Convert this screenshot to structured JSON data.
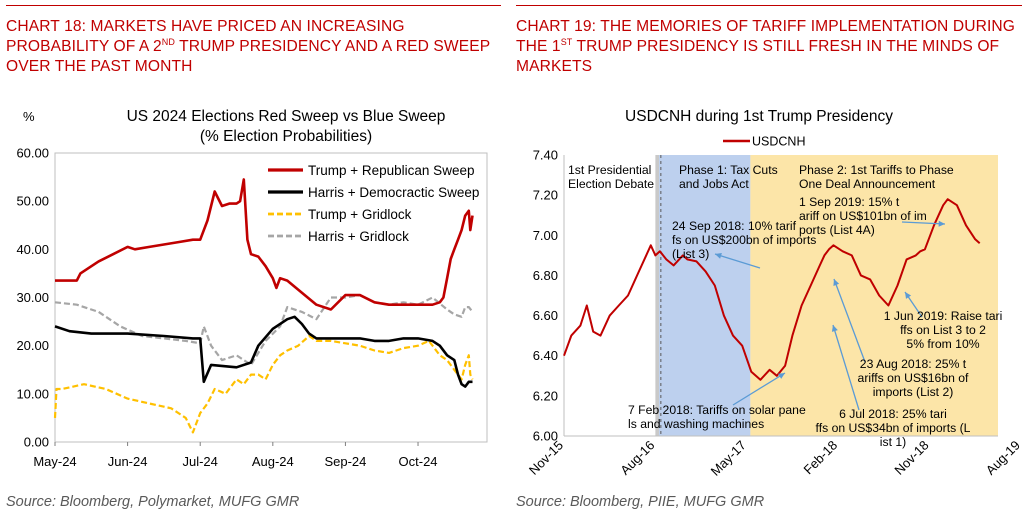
{
  "left_panel": {
    "title_parts": [
      "Chart 18: Markets have priced an increasing probability of a 2",
      "nd",
      " Trump presidency and a red sweep over the past month"
    ],
    "source": "Source: Bloomberg, Polymarket, MUFG GMR"
  },
  "right_panel": {
    "title_parts": [
      "Chart 19: The memories of tariff implementation during the 1",
      "st",
      " Trump presidency is still fresh in the minds of markets"
    ],
    "source": "Source: Bloomberg, PIIE, MUFG GMR"
  },
  "chart_data": [
    {
      "type": "line",
      "title": "US 2024 Elections Red Sweep vs Blue Sweep",
      "subtitle": "(% Election Probabilities)",
      "ylabel": "%",
      "ylim": [
        0,
        60
      ],
      "yticks": [
        "0.00",
        "10.00",
        "20.00",
        "30.00",
        "40.00",
        "50.00",
        "60.00"
      ],
      "xlabels": [
        "May-24",
        "Jun-24",
        "Jul-24",
        "Aug-24",
        "Sep-24",
        "Oct-24"
      ],
      "xlim": [
        0,
        5.95
      ],
      "legend_position": "top-right",
      "series": [
        {
          "name": "Trump + Republican Sweep",
          "color": "#c00000",
          "style": "solid",
          "width": 2.6,
          "x": [
            0,
            0.3,
            0.35,
            0.6,
            0.8,
            1.0,
            1.1,
            1.3,
            1.5,
            1.7,
            1.9,
            2.0,
            2.1,
            2.2,
            2.3,
            2.4,
            2.5,
            2.55,
            2.6,
            2.65,
            2.7,
            2.8,
            2.9,
            3.0,
            3.05,
            3.1,
            3.2,
            3.4,
            3.6,
            3.8,
            4.0,
            4.2,
            4.4,
            4.6,
            4.8,
            5.0,
            5.1,
            5.2,
            5.3,
            5.35,
            5.4,
            5.45,
            5.5,
            5.55,
            5.6,
            5.65,
            5.7,
            5.72,
            5.75
          ],
          "y": [
            33.5,
            33.5,
            35,
            37.5,
            39,
            40.5,
            40,
            40.5,
            41,
            41.5,
            42,
            42,
            46,
            52,
            49,
            49.5,
            49.5,
            50,
            54.5,
            42,
            39,
            38.5,
            36.5,
            34,
            32,
            34,
            33.5,
            31,
            28.5,
            27.5,
            30.5,
            30.5,
            29,
            28.5,
            28.5,
            28.5,
            28.5,
            28.5,
            29,
            30,
            34,
            38,
            40,
            42,
            44,
            47,
            48,
            44,
            47
          ]
        },
        {
          "name": "Harris + Democractic Sweep",
          "color": "#000000",
          "style": "solid",
          "width": 2.6,
          "x": [
            0,
            0.2,
            0.5,
            1.0,
            1.5,
            1.9,
            2.0,
            2.05,
            2.15,
            2.5,
            2.7,
            2.8,
            3.0,
            3.2,
            3.3,
            3.4,
            3.5,
            3.6,
            3.8,
            4.0,
            4.2,
            4.4,
            4.6,
            4.8,
            5.0,
            5.2,
            5.3,
            5.4,
            5.5,
            5.55,
            5.6,
            5.65,
            5.7,
            5.75
          ],
          "y": [
            24,
            23,
            22.5,
            22.5,
            22,
            21.5,
            21.5,
            12.5,
            16,
            15.5,
            16.5,
            20,
            23.5,
            25.5,
            26,
            24.5,
            22.5,
            21.5,
            21.5,
            21.5,
            21.5,
            21,
            21,
            21.5,
            21.5,
            21,
            20,
            18,
            17,
            14,
            12,
            11.5,
            12.5,
            12.5
          ]
        },
        {
          "name": "Trump + Gridlock",
          "color": "#ffc000",
          "style": "dashed",
          "width": 2.2,
          "x": [
            0,
            0.02,
            0.1,
            0.4,
            0.7,
            1.0,
            1.3,
            1.6,
            1.8,
            1.9,
            2.0,
            2.1,
            2.2,
            2.35,
            2.5,
            2.6,
            2.7,
            2.8,
            2.9,
            3.0,
            3.1,
            3.2,
            3.35,
            3.5,
            3.6,
            3.8,
            4.0,
            4.2,
            4.4,
            4.6,
            4.8,
            5.0,
            5.15,
            5.3,
            5.4,
            5.5,
            5.6,
            5.65,
            5.7,
            5.72,
            5.75
          ],
          "y": [
            5,
            11,
            11,
            12,
            11,
            9,
            8,
            7,
            5,
            2,
            6,
            8,
            11,
            10,
            13,
            12,
            14,
            14,
            13,
            16,
            18,
            19,
            20,
            22,
            21,
            21,
            20.5,
            20,
            19,
            18.5,
            19.5,
            20,
            21,
            18,
            17,
            15,
            13,
            16,
            18,
            14,
            13
          ]
        },
        {
          "name": "Harris + Gridlock",
          "color": "#a6a6a6",
          "style": "dashed",
          "width": 2.2,
          "x": [
            0,
            0.3,
            0.6,
            0.9,
            1.2,
            1.5,
            1.8,
            2.0,
            2.05,
            2.15,
            2.3,
            2.5,
            2.7,
            2.9,
            3.1,
            3.2,
            3.4,
            3.6,
            3.8,
            4.0,
            4.2,
            4.4,
            4.6,
            4.8,
            5.0,
            5.2,
            5.4,
            5.5,
            5.6,
            5.65,
            5.7,
            5.75
          ],
          "y": [
            29,
            28.5,
            27,
            24,
            22,
            21.5,
            21,
            20.5,
            24,
            20,
            17,
            18,
            16,
            21,
            24,
            28,
            27,
            25.5,
            30,
            30,
            30.5,
            29,
            28.5,
            29,
            28.5,
            30,
            27.5,
            26.5,
            26,
            28,
            28,
            27
          ]
        }
      ]
    },
    {
      "type": "line",
      "title": "USDCNH during 1st Trump Presidency",
      "ylim": [
        6.0,
        7.4
      ],
      "yticks": [
        "6.00",
        "6.20",
        "6.40",
        "6.60",
        "6.80",
        "7.00",
        "7.20",
        "7.40"
      ],
      "xlabels": [
        "Nov-15",
        "Aug-16",
        "May-17",
        "Feb-18",
        "Nov-18",
        "Aug-19"
      ],
      "xlim": [
        0,
        4.75
      ],
      "legend_position": "top-center",
      "series": [
        {
          "name": "USDCNH",
          "color": "#c00000",
          "style": "solid",
          "width": 2.0,
          "x": [
            0,
            0.08,
            0.18,
            0.25,
            0.32,
            0.4,
            0.5,
            0.6,
            0.7,
            0.8,
            0.9,
            0.95,
            1.0,
            1.05,
            1.12,
            1.2,
            1.3,
            1.35,
            1.45,
            1.55,
            1.65,
            1.75,
            1.85,
            1.95,
            2.05,
            2.15,
            2.25,
            2.33,
            2.42,
            2.5,
            2.6,
            2.7,
            2.8,
            2.85,
            2.9,
            2.95,
            3.05,
            3.15,
            3.25,
            3.35,
            3.45,
            3.55,
            3.65,
            3.75,
            3.85,
            3.9,
            3.95,
            4.05,
            4.1,
            4.15,
            4.2,
            4.3,
            4.4,
            4.5,
            4.55
          ],
          "y": [
            6.4,
            6.5,
            6.55,
            6.65,
            6.52,
            6.5,
            6.6,
            6.65,
            6.7,
            6.8,
            6.9,
            6.95,
            6.9,
            6.92,
            6.88,
            6.85,
            6.9,
            6.88,
            6.87,
            6.82,
            6.75,
            6.6,
            6.5,
            6.45,
            6.32,
            6.28,
            6.33,
            6.3,
            6.35,
            6.5,
            6.65,
            6.75,
            6.85,
            6.9,
            6.93,
            6.95,
            6.92,
            6.9,
            6.8,
            6.78,
            6.7,
            6.65,
            6.75,
            6.88,
            6.9,
            6.92,
            6.93,
            7.05,
            7.1,
            7.15,
            7.18,
            7.15,
            7.05,
            6.98,
            6.96
          ]
        }
      ],
      "shaded_regions": [
        {
          "label": "1st Presidential Election Debate",
          "color": "#c9c9c9",
          "from": 1.0,
          "to": 1.04
        },
        {
          "label": "Phase 1: Tax Cuts and Jobs Act",
          "color": "#bdd0ee",
          "from": 1.04,
          "to": 2.04
        },
        {
          "label": "Phase 2: 1st Tariffs to Phase One Deal Announcement",
          "color": "#fce5a8",
          "from": 2.04,
          "to": 4.75
        }
      ],
      "annotations": [
        "24 Sep 2018: 10% tariffs on US$200bn of imports (List 3)",
        "1 Sep 2019: 15% tariff on US$101bn of imports (List 4A)",
        "1 Jun 2019: Raise tariffs on List 3 to 25% from 10%",
        "23 Aug 2018: 25% tariffs on US$16bn of imports (List 2)",
        "6 Jul 2018: 25% tariffs on US$34bn of imports (List 1)",
        "7 Feb 2018: Tariffs on solar panels and washing machines"
      ]
    }
  ]
}
